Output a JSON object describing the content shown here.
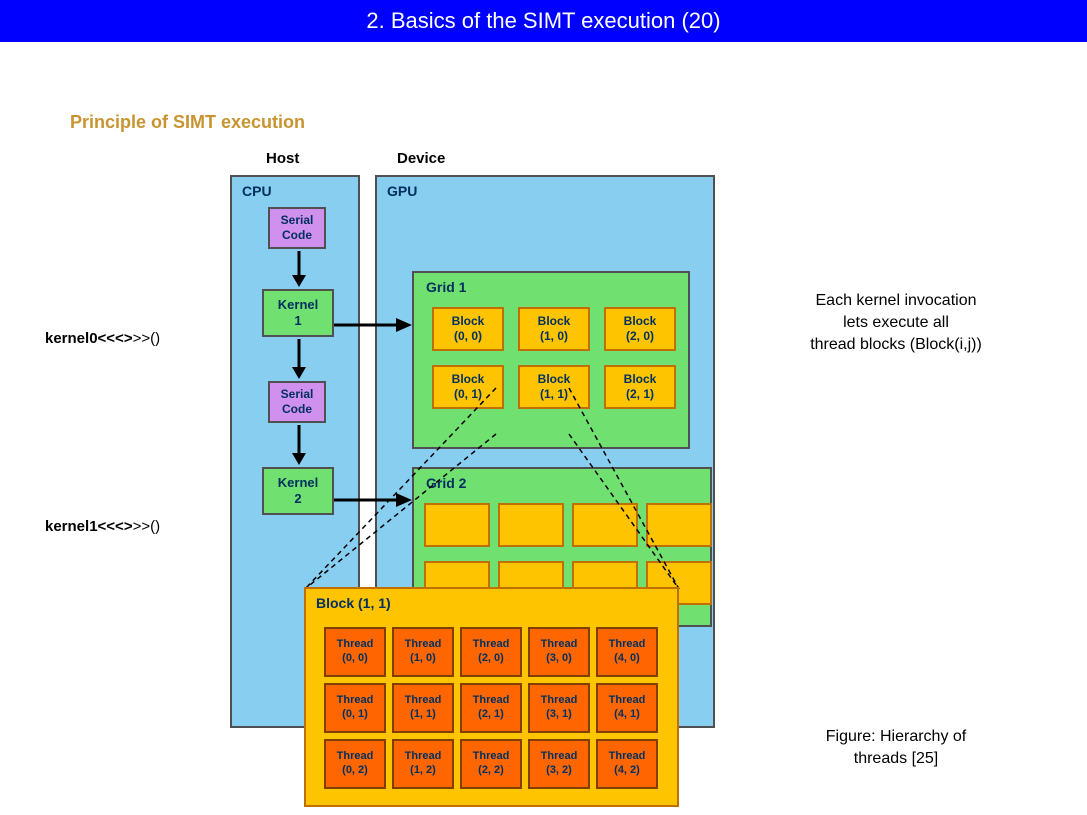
{
  "header": {
    "title": "2. Basics of the SIMT execution (20)"
  },
  "subtitle": "Principle of SIMT execution",
  "labels": {
    "host": "Host",
    "device": "Device",
    "cpu": "CPU",
    "gpu": "GPU"
  },
  "cpu_flow": {
    "serial1": "Serial\nCode",
    "kernel1": "Kernel\n1",
    "serial2": "Serial\nCode",
    "kernel2": "Kernel\n2"
  },
  "kernel_calls": {
    "k0_prefix": "kernel0<<<>",
    "k0_suffix": ">>()",
    "k1_prefix": "kernel1<<<>",
    "k1_suffix": ">>()"
  },
  "grid1": {
    "label": "Grid 1",
    "blocks": [
      [
        "Block\n(0, 0)",
        "Block\n(1, 0)",
        "Block\n(2, 0)"
      ],
      [
        "Block\n(0, 1)",
        "Block\n(1, 1)",
        "Block\n(2, 1)"
      ]
    ]
  },
  "grid2": {
    "label": "Grid 2",
    "rows": 2,
    "cols": 4
  },
  "block_detail": {
    "label": "Block (1, 1)",
    "threads": [
      [
        "Thread\n(0, 0)",
        "Thread\n(1, 0)",
        "Thread\n(2, 0)",
        "Thread\n(3, 0)",
        "Thread\n(4, 0)"
      ],
      [
        "Thread\n(0, 1)",
        "Thread\n(1, 1)",
        "Thread\n(2, 1)",
        "Thread\n(3, 1)",
        "Thread\n(4, 1)"
      ],
      [
        "Thread\n(0, 2)",
        "Thread\n(1, 2)",
        "Thread\n(2, 2)",
        "Thread\n(3, 2)",
        "Thread\n(4, 2)"
      ]
    ]
  },
  "annotations": {
    "right_note": "Each kernel invocation\nlets execute all\nthread blocks (Block(i,j))",
    "caption": "Figure: Hierarchy of\nthreads [25]"
  },
  "colors": {
    "header_bg": "#0000ff",
    "subtitle": "#c89430",
    "cpu_gpu_bg": "#88cef0",
    "serial_bg": "#d090ee",
    "kernel_grid_bg": "#70e070",
    "block_bg": "#ffc400",
    "thread_bg": "#ff6600"
  }
}
